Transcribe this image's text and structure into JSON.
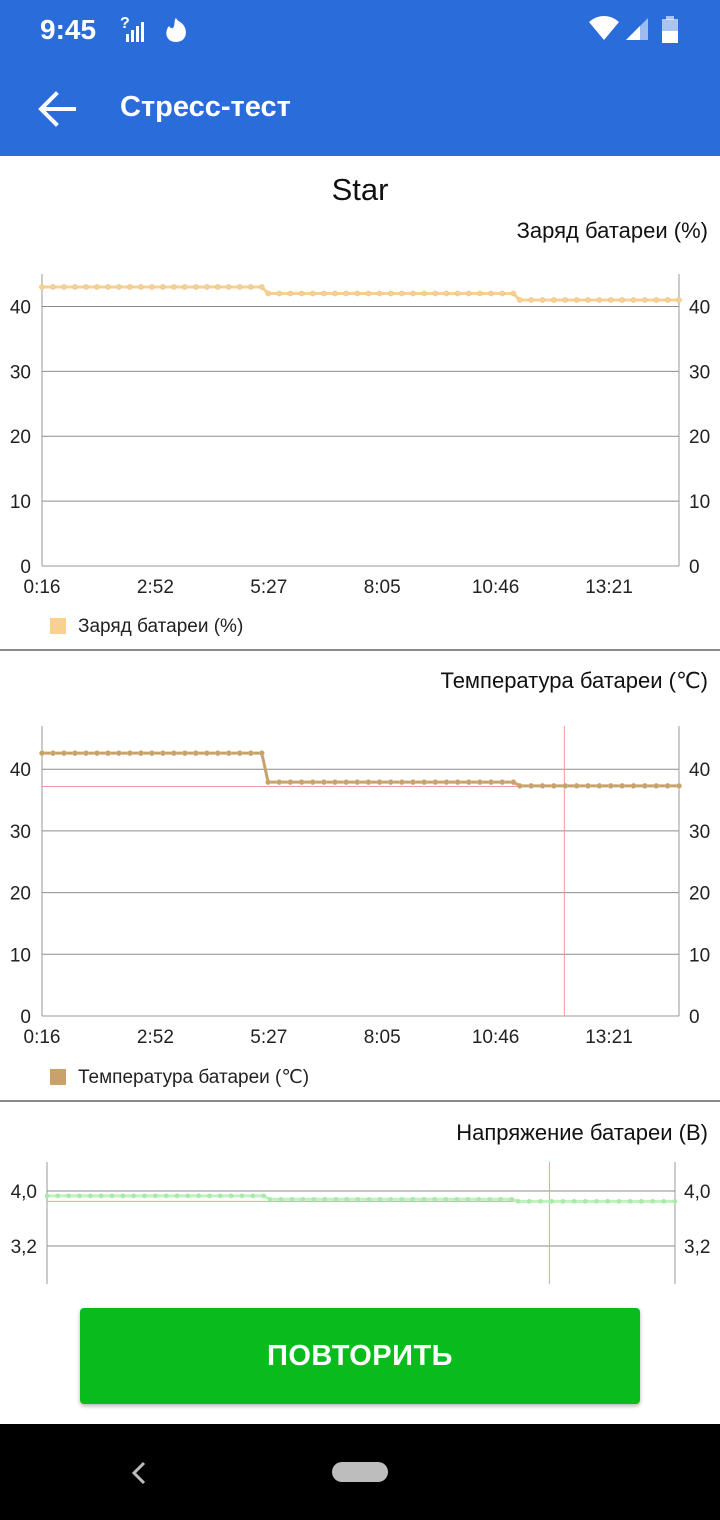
{
  "status": {
    "time": "9:45"
  },
  "appbar": {
    "title": "Стресс-тест"
  },
  "device_name": "Star",
  "charts": [
    {
      "title": "Заряд батареи (%)",
      "legend": "Заряд батареи (%)",
      "color": "#f9d08e",
      "yticks": [
        "0",
        "10",
        "20",
        "30",
        "40"
      ],
      "xticks": [
        "0:16",
        "2:52",
        "5:27",
        "8:05",
        "10:46",
        "13:21"
      ],
      "ymax": 45,
      "segments": [
        {
          "from": 0,
          "to": 0.345,
          "value": 43
        },
        {
          "from": 0.355,
          "to": 0.74,
          "value": 42
        },
        {
          "from": 0.75,
          "to": 1,
          "value": 41
        }
      ]
    },
    {
      "title": "Температура батареи (℃)",
      "legend": "Температура батареи (℃)",
      "color": "#c8a26a",
      "ref_color": "#f29a9a",
      "yticks": [
        "0",
        "10",
        "20",
        "30",
        "40"
      ],
      "xticks": [
        "0:16",
        "2:52",
        "5:27",
        "8:05",
        "10:46",
        "13:21"
      ],
      "ymax": 47,
      "ref_value": 37.2,
      "ref_x": 0.82,
      "segments": [
        {
          "from": 0,
          "to": 0.345,
          "value": 42.6
        },
        {
          "from": 0.355,
          "to": 0.74,
          "value": 37.9
        },
        {
          "from": 0.75,
          "to": 1,
          "value": 37.3
        }
      ]
    },
    {
      "title": "Напряжение батареи (В)",
      "color": "#bff2bf",
      "ref_color": "#f29a9a",
      "yticks": [
        "3,2",
        "4,0"
      ],
      "ref_value": 3.85,
      "ref_x": 0.8,
      "segments": [
        {
          "from": 0,
          "to": 0.345,
          "value": 3.93
        },
        {
          "from": 0.355,
          "to": 0.74,
          "value": 3.88
        },
        {
          "from": 0.75,
          "to": 1,
          "value": 3.85
        }
      ]
    }
  ],
  "repeat_button": "ПОВТОРИТЬ"
}
